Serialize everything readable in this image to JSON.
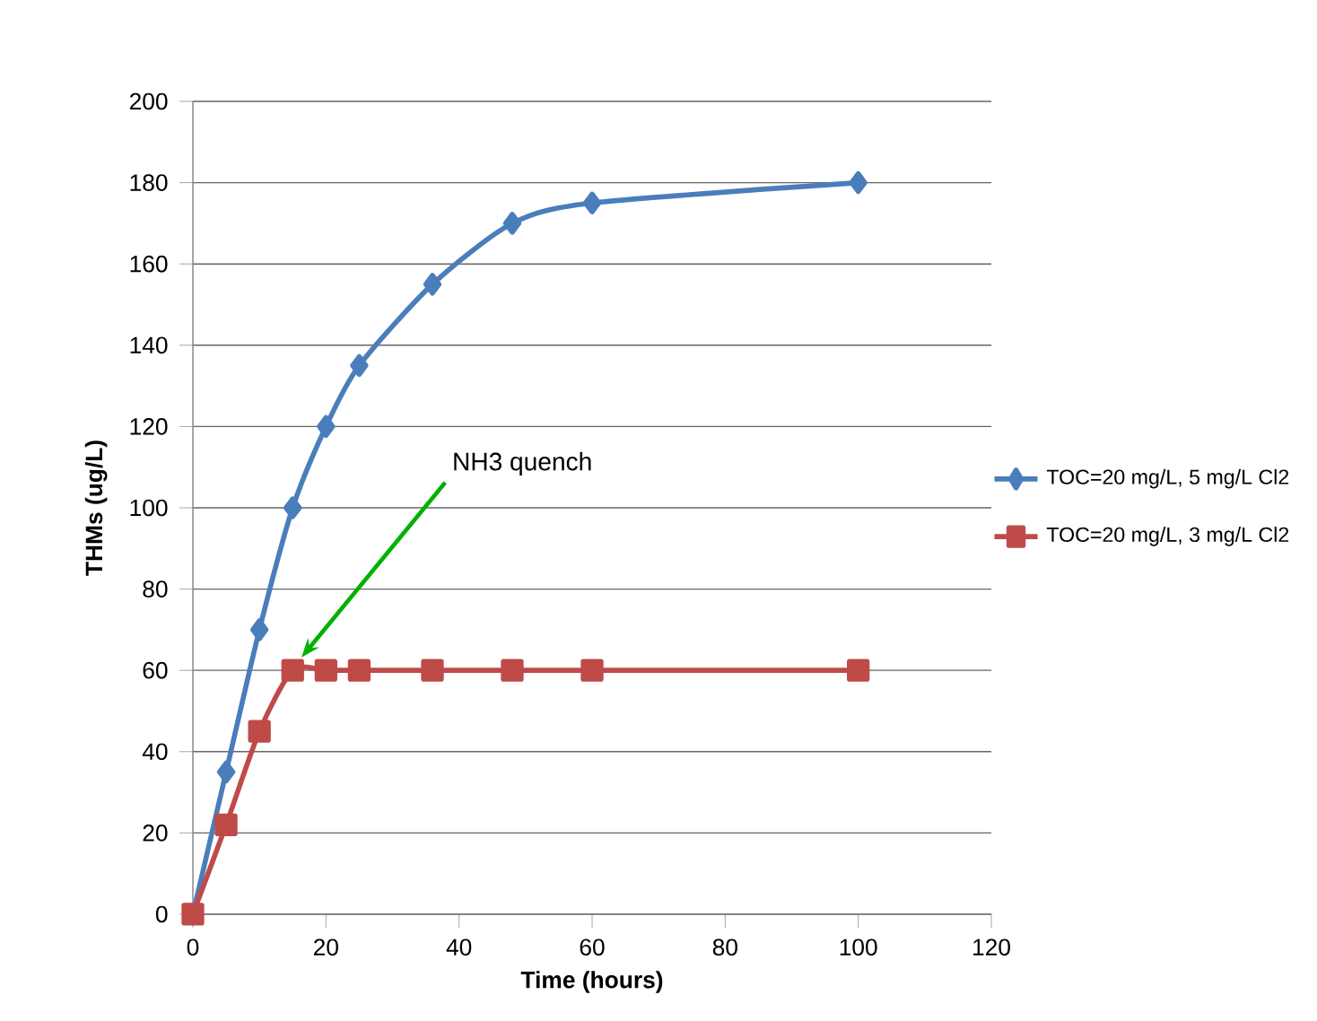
{
  "chart_data": {
    "type": "line",
    "xlabel": "Time (hours)",
    "ylabel": "THMs  (ug/L)",
    "x": [
      0,
      5,
      10,
      15,
      20,
      25,
      36,
      48,
      60,
      100
    ],
    "series": [
      {
        "name": "TOC=20 mg/L, 5 mg/L Cl2",
        "color": "#4a7ebb",
        "marker": "diamond",
        "values": [
          0,
          35,
          70,
          100,
          120,
          135,
          155,
          170,
          175,
          180
        ]
      },
      {
        "name": "TOC=20 mg/L, 3 mg/L Cl2",
        "color": "#be4b48",
        "marker": "square",
        "values": [
          0,
          22,
          45,
          60,
          60,
          60,
          60,
          60,
          60,
          60
        ]
      }
    ],
    "xlim": [
      0,
      120
    ],
    "xticks": [
      0,
      20,
      40,
      60,
      80,
      100,
      120
    ],
    "ylim": [
      0,
      200
    ],
    "yticks": [
      0,
      20,
      40,
      60,
      80,
      100,
      120,
      140,
      160,
      180,
      200
    ],
    "grid": "y",
    "legend": "right",
    "line_style": "solid",
    "annotations": [
      "NH3 quench"
    ]
  }
}
